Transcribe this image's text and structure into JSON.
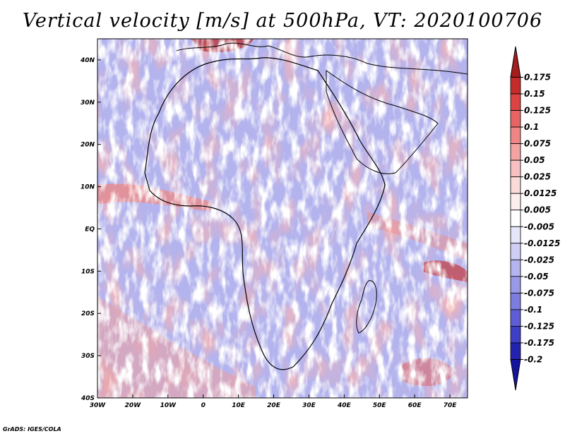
{
  "title": "Vertical velocity [m/s] at 500hPa, VT: 2020100706",
  "credit": "GrADS: IGES/COLA",
  "map": {
    "region": "Africa",
    "lon_range": [
      -30,
      75
    ],
    "lat_range": [
      -40,
      45
    ],
    "lat_ticks": [
      {
        "lat": 40,
        "label": "40N"
      },
      {
        "lat": 30,
        "label": "30N"
      },
      {
        "lat": 20,
        "label": "20N"
      },
      {
        "lat": 10,
        "label": "10N"
      },
      {
        "lat": 0,
        "label": "EQ"
      },
      {
        "lat": -10,
        "label": "10S"
      },
      {
        "lat": -20,
        "label": "20S"
      },
      {
        "lat": -30,
        "label": "30S"
      },
      {
        "lat": -40,
        "label": "40S"
      }
    ],
    "lon_ticks": [
      {
        "lon": -30,
        "label": "30W"
      },
      {
        "lon": -20,
        "label": "20W"
      },
      {
        "lon": -10,
        "label": "10W"
      },
      {
        "lon": 0,
        "label": "0"
      },
      {
        "lon": 10,
        "label": "10E"
      },
      {
        "lon": 20,
        "label": "20E"
      },
      {
        "lon": 30,
        "label": "30E"
      },
      {
        "lon": 40,
        "label": "40E"
      },
      {
        "lon": 50,
        "label": "50E"
      },
      {
        "lon": 60,
        "label": "60E"
      },
      {
        "lon": 70,
        "label": "70E"
      }
    ]
  },
  "colorbar": {
    "labels": [
      "0.175",
      "0.15",
      "0.125",
      "0.1",
      "0.075",
      "0.05",
      "0.025",
      "0.0125",
      "0.005",
      "-0.005",
      "-0.0125",
      "-0.025",
      "-0.05",
      "-0.075",
      "-0.1",
      "-0.125",
      "-0.175",
      "-0.2"
    ],
    "colors": [
      "#a51c1c",
      "#c62b2b",
      "#dc4444",
      "#e86464",
      "#ef8585",
      "#f4a3a3",
      "#f8c0c0",
      "#fbdada",
      "#fdeeee",
      "#ffffff",
      "#e6e6fb",
      "#cfcff6",
      "#b4b4ef",
      "#9999e8",
      "#7d7de0",
      "#5d5dd5",
      "#3e3ec7",
      "#2323b0",
      "#1414a0"
    ]
  }
}
